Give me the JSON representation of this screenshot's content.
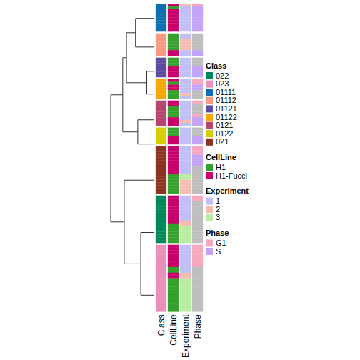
{
  "chart_data": {
    "type": "annotated_dendrogram",
    "columns": [
      "Class",
      "CellLine",
      "Experiment",
      "Phase"
    ],
    "legends": [
      {
        "title": "Class",
        "values": [
          "022",
          "023",
          "01111",
          "01112",
          "01121",
          "01122",
          "0121",
          "0122",
          "021"
        ],
        "colors": [
          "#00875A",
          "#E88FBA",
          "#0E6EB0",
          "#F89A82",
          "#5E4CA1",
          "#F4A700",
          "#B5446E",
          "#D6CD00",
          "#8A3321"
        ]
      },
      {
        "title": "CellLine",
        "values": [
          "H1",
          "H1-Fucci"
        ],
        "colors": [
          "#35A02C",
          "#C8006B"
        ]
      },
      {
        "title": "Experiment",
        "values": [
          1,
          2,
          3
        ],
        "colors": [
          "#C0C0F6",
          "#F8BDB2",
          "#B9EEA2"
        ]
      },
      {
        "title": "Phase",
        "values": [
          "G1",
          "S"
        ],
        "colors": [
          "#F6A9BE",
          "#C3A4F6"
        ]
      }
    ],
    "groups": [
      {
        "class": "01111",
        "cellline": [
          "H1-Fucci",
          "H1",
          "H1-Fucci",
          "H1-Fucci",
          "H1-Fucci",
          "H1-Fucci",
          "H1-Fucci",
          "H1-Fucci",
          "H1-Fucci",
          "H1-Fucci"
        ],
        "experiment": [
          2,
          1,
          1,
          1,
          1,
          1,
          1,
          1,
          1,
          1
        ],
        "phase": [
          "G1",
          "S",
          "S",
          "S",
          "S",
          "S",
          "S",
          "S",
          "S",
          "S"
        ]
      },
      {
        "class": "01112",
        "cellline": [
          "H1",
          "H1",
          "H1",
          "H1",
          "H1",
          "H1",
          "H1-Fucci",
          "H1-Fucci"
        ],
        "experiment": [
          1,
          1,
          2,
          2,
          2,
          2,
          1,
          1
        ],
        "phase": [
          null,
          null,
          null,
          null,
          null,
          null,
          "S",
          "S"
        ]
      },
      {
        "class": "01121",
        "cellline": [
          "H1",
          "H1",
          "H1",
          "H1-Fucci",
          "H1-Fucci",
          "H1-Fucci",
          "H1-Fucci"
        ],
        "experiment": [
          1,
          1,
          1,
          1,
          1,
          1,
          1
        ],
        "phase": [
          null,
          null,
          null,
          "S",
          "S",
          "S",
          "S"
        ]
      },
      {
        "class": "01122",
        "cellline": [
          "H1-Fucci",
          "H1",
          "H1-Fucci",
          "H1-Fucci",
          "H1",
          "H1",
          "H1"
        ],
        "experiment": [
          1,
          1,
          1,
          1,
          1,
          2,
          1
        ],
        "phase": [
          "G1",
          "G1",
          "S",
          "S",
          null,
          null,
          null
        ]
      },
      {
        "class": "0121",
        "cellline": [
          "H1-Fucci",
          "H1-Fucci",
          "H1",
          "H1",
          "H1",
          "H1",
          "H1-Fucci",
          "H1-Fucci",
          "H1-Fucci"
        ],
        "experiment": [
          1,
          1,
          1,
          1,
          1,
          1,
          1,
          2,
          1
        ],
        "phase": [
          "G1",
          null,
          null,
          null,
          null,
          "G1",
          "S",
          "S",
          "S"
        ]
      },
      {
        "class": "0122",
        "cellline": [
          "H1",
          "H1",
          "H1",
          "H1-Fucci",
          "H1-Fucci",
          "H1-Fucci"
        ],
        "experiment": [
          1,
          1,
          1,
          1,
          1,
          1
        ],
        "phase": [
          null,
          null,
          null,
          "S",
          "S",
          "S"
        ]
      },
      {
        "class": "021",
        "cellline": [
          "H1-Fucci",
          "H1-Fucci",
          "H1-Fucci",
          "H1-Fucci",
          "H1-Fucci",
          "H1-Fucci",
          "H1-Fucci",
          "H1-Fucci",
          "H1-Fucci",
          "H1-Fucci",
          "H1",
          "H1",
          "H1",
          "H1",
          "H1",
          "H1",
          "H1"
        ],
        "experiment": [
          1,
          1,
          1,
          1,
          1,
          1,
          1,
          1,
          1,
          1,
          3,
          3,
          2,
          2,
          2,
          2,
          2
        ],
        "phase": [
          "G1",
          "G1",
          "G1",
          "S",
          "S",
          "S",
          "S",
          null,
          null,
          null,
          null,
          null,
          null,
          null,
          null,
          null,
          null
        ]
      },
      {
        "class": "022",
        "cellline": [
          "H1-Fucci",
          "H1-Fucci",
          "H1-Fucci",
          "H1-Fucci",
          "H1-Fucci",
          "H1-Fucci",
          "H1-Fucci",
          "H1-Fucci",
          "H1-Fucci",
          "H1-Fucci",
          "H1",
          "H1",
          "H1",
          "H1",
          "H1",
          "H1",
          "H1"
        ],
        "experiment": [
          1,
          1,
          1,
          1,
          1,
          1,
          1,
          1,
          1,
          2,
          2,
          3,
          3,
          3,
          3,
          3,
          3
        ],
        "phase": [
          "G1",
          "G1",
          null,
          null,
          null,
          null,
          null,
          null,
          null,
          null,
          null,
          null,
          null,
          null,
          null,
          null,
          null
        ]
      },
      {
        "class": "023",
        "cellline": [
          "H1-Fucci",
          "H1-Fucci",
          "H1-Fucci",
          "H1-Fucci",
          "H1-Fucci",
          "H1-Fucci",
          "H1-Fucci",
          "H1-Fucci",
          "H1",
          "H1",
          "H1-Fucci",
          "H1-Fucci",
          "H1",
          "H1",
          "H1",
          "H1",
          "H1",
          "H1",
          "H1",
          "H1",
          "H1",
          "H1",
          "H1",
          "H1"
        ],
        "experiment": [
          1,
          1,
          1,
          1,
          1,
          1,
          1,
          1,
          1,
          1,
          2,
          2,
          3,
          3,
          3,
          3,
          3,
          3,
          3,
          3,
          3,
          3,
          3,
          3
        ],
        "phase": [
          "G1",
          "G1",
          "G1",
          "G1",
          "G1",
          "G1",
          "G1",
          "G1",
          null,
          null,
          null,
          null,
          null,
          null,
          null,
          null,
          null,
          null,
          null,
          null,
          null,
          null,
          null,
          null
        ]
      }
    ],
    "dendrogram": {
      "height": 58,
      "children": [
        {
          "height": 42,
          "children": [
            {
              "height": 37,
              "children": [
                {
                  "height": 25,
                  "children": [
                    {
                      "leaf": "01111"
                    },
                    {
                      "leaf": "01112"
                    }
                  ]
                },
                {
                  "height": 10,
                  "children": [
                    {
                      "leaf": "01121"
                    },
                    {
                      "leaf": "01122"
                    }
                  ]
                }
              ]
            },
            {
              "height": 22,
              "children": [
                {
                  "leaf": "0121"
                },
                {
                  "leaf": "0122"
                }
              ]
            }
          ]
        },
        {
          "height": 40,
          "children": [
            {
              "leaf": "021"
            },
            {
              "height": 18,
              "children": [
                {
                  "leaf": "022"
                },
                {
                  "leaf": "023"
                }
              ]
            }
          ]
        }
      ]
    }
  }
}
